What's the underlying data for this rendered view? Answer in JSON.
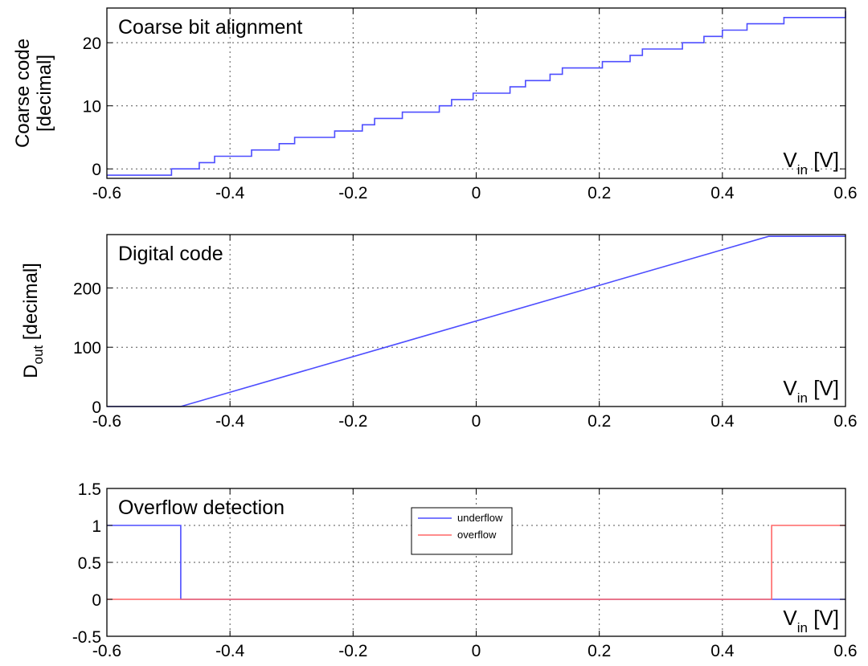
{
  "chart_data": [
    {
      "type": "line",
      "title": "Coarse bit alignment",
      "ylabel_lines": [
        "Coarse code",
        "[decimal]"
      ],
      "xlabel_main": "V",
      "xlabel_sub": "in",
      "xlabel_unit": " [V]",
      "xlim": [
        -0.6,
        0.6
      ],
      "ylim": [
        -1.5,
        25.5
      ],
      "xticks": [
        -0.6,
        -0.4,
        -0.2,
        0,
        0.2,
        0.4,
        0.6
      ],
      "xtick_labels": [
        "-0.6",
        "-0.4",
        "-0.2",
        "0",
        "0.2",
        "0.4",
        "0.6"
      ],
      "yticks": [
        0,
        10,
        20
      ],
      "ytick_labels": [
        "0",
        "10",
        "20"
      ],
      "grid": true,
      "step": true,
      "series": [
        {
          "color": "#4d4dff",
          "x": [
            -0.6,
            -0.495,
            -0.475,
            -0.45,
            -0.425,
            -0.39,
            -0.365,
            -0.32,
            -0.295,
            -0.255,
            -0.23,
            -0.185,
            -0.165,
            -0.12,
            -0.1,
            -0.06,
            -0.04,
            -0.005,
            0.02,
            0.055,
            0.08,
            0.12,
            0.14,
            0.18,
            0.205,
            0.25,
            0.27,
            0.31,
            0.335,
            0.37,
            0.4,
            0.44,
            0.46,
            0.5,
            0.6
          ],
          "y": [
            -1,
            0,
            0,
            1,
            2,
            2,
            3,
            4,
            5,
            5,
            6,
            7,
            8,
            9,
            9,
            10,
            11,
            12,
            12,
            13,
            14,
            15,
            16,
            16,
            17,
            18,
            19,
            19,
            20,
            21,
            22,
            23,
            23,
            24,
            25
          ]
        }
      ]
    },
    {
      "type": "line",
      "title": "Digital code",
      "ylabel_main": "D",
      "ylabel_sub": "out",
      "ylabel_rest": " [decimal]",
      "xlabel_main": "V",
      "xlabel_sub": "in",
      "xlabel_unit": " [V]",
      "xlim": [
        -0.6,
        0.6
      ],
      "ylim": [
        0,
        290
      ],
      "xticks": [
        -0.6,
        -0.4,
        -0.2,
        0,
        0.2,
        0.4,
        0.6
      ],
      "xtick_labels": [
        "-0.6",
        "-0.4",
        "-0.2",
        "0",
        "0.2",
        "0.4",
        "0.6"
      ],
      "yticks": [
        0,
        100,
        200
      ],
      "ytick_labels": [
        "0",
        "100",
        "200"
      ],
      "grid": true,
      "series": [
        {
          "color": "#4d4dff",
          "x": [
            -0.6,
            -0.48,
            0.475,
            0.6
          ],
          "y": [
            0,
            0,
            287,
            287
          ]
        }
      ]
    },
    {
      "type": "line",
      "title": "Overflow detection",
      "xlabel_main": "V",
      "xlabel_sub": "in",
      "xlabel_unit": " [V]",
      "xlim": [
        -0.6,
        0.6
      ],
      "ylim": [
        -0.5,
        1.5
      ],
      "xticks": [
        -0.6,
        -0.4,
        -0.2,
        0,
        0.2,
        0.4,
        0.6
      ],
      "xtick_labels": [
        "-0.6",
        "-0.4",
        "-0.2",
        "0",
        "0.2",
        "0.4",
        "0.6"
      ],
      "yticks": [
        -0.5,
        0,
        0.5,
        1,
        1.5
      ],
      "ytick_labels": [
        "-0.5",
        "0",
        "0.5",
        "1",
        "1.5"
      ],
      "grid": true,
      "legend": "top-center",
      "series": [
        {
          "name": "underflow",
          "color": "#4d4dff",
          "x": [
            -0.6,
            -0.48,
            -0.48,
            0.48,
            0.48,
            0.6
          ],
          "y": [
            1,
            1,
            0,
            0,
            0,
            0
          ]
        },
        {
          "name": "overflow",
          "color": "#ff6666",
          "x": [
            -0.6,
            0.48,
            0.48,
            0.6
          ],
          "y": [
            0,
            0,
            1,
            1
          ]
        }
      ]
    }
  ]
}
